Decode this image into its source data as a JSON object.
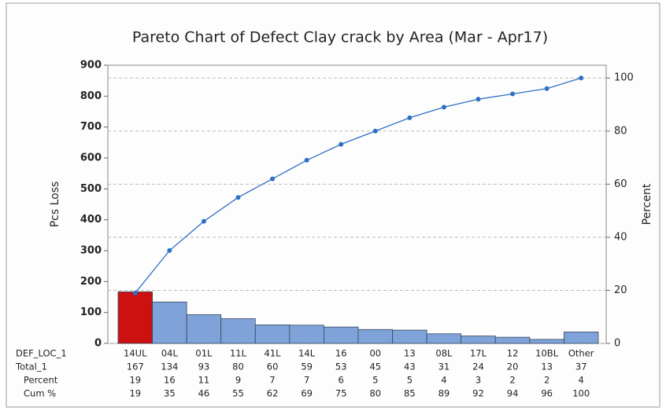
{
  "chart_data": {
    "type": "pareto",
    "title": "Pareto Chart of Defect Clay crack by Area (Mar - Apr17)",
    "y_label": "Pcs Loss",
    "y2_label": "Percent",
    "category_label": "DEF_LOC_1",
    "categories": [
      "14UL",
      "04L",
      "01L",
      "11L",
      "41L",
      "14L",
      "16",
      "00",
      "13",
      "08L",
      "17L",
      "12",
      "10BL",
      "Other"
    ],
    "series": [
      {
        "name": "Total_1",
        "values": [
          167,
          134,
          93,
          80,
          60,
          59,
          53,
          45,
          43,
          31,
          24,
          20,
          13,
          37
        ],
        "colors": [
          "#cc1111",
          "#7fa3d9",
          "#7fa3d9",
          "#7fa3d9",
          "#7fa3d9",
          "#7fa3d9",
          "#7fa3d9",
          "#7fa3d9",
          "#7fa3d9",
          "#7fa3d9",
          "#7fa3d9",
          "#7fa3d9",
          "#7fa3d9",
          "#7fa3d9"
        ]
      },
      {
        "name": "Percent",
        "values": [
          19,
          16,
          11,
          9,
          7,
          7,
          6,
          5,
          5,
          4,
          3,
          2,
          2,
          4
        ]
      },
      {
        "name": "Cum %",
        "color": "#2f6fc4",
        "axis": "y2",
        "values": [
          19,
          35,
          46,
          55,
          62,
          69,
          75,
          80,
          85,
          89,
          92,
          94,
          96,
          100
        ]
      }
    ],
    "ylim": [
      0,
      900
    ],
    "yticks": [
      0,
      100,
      200,
      300,
      400,
      500,
      600,
      700,
      800,
      900
    ],
    "y2lim": [
      0,
      104.8
    ],
    "y2ticks": [
      0,
      20,
      40,
      60,
      80,
      100
    ],
    "grid": true
  }
}
